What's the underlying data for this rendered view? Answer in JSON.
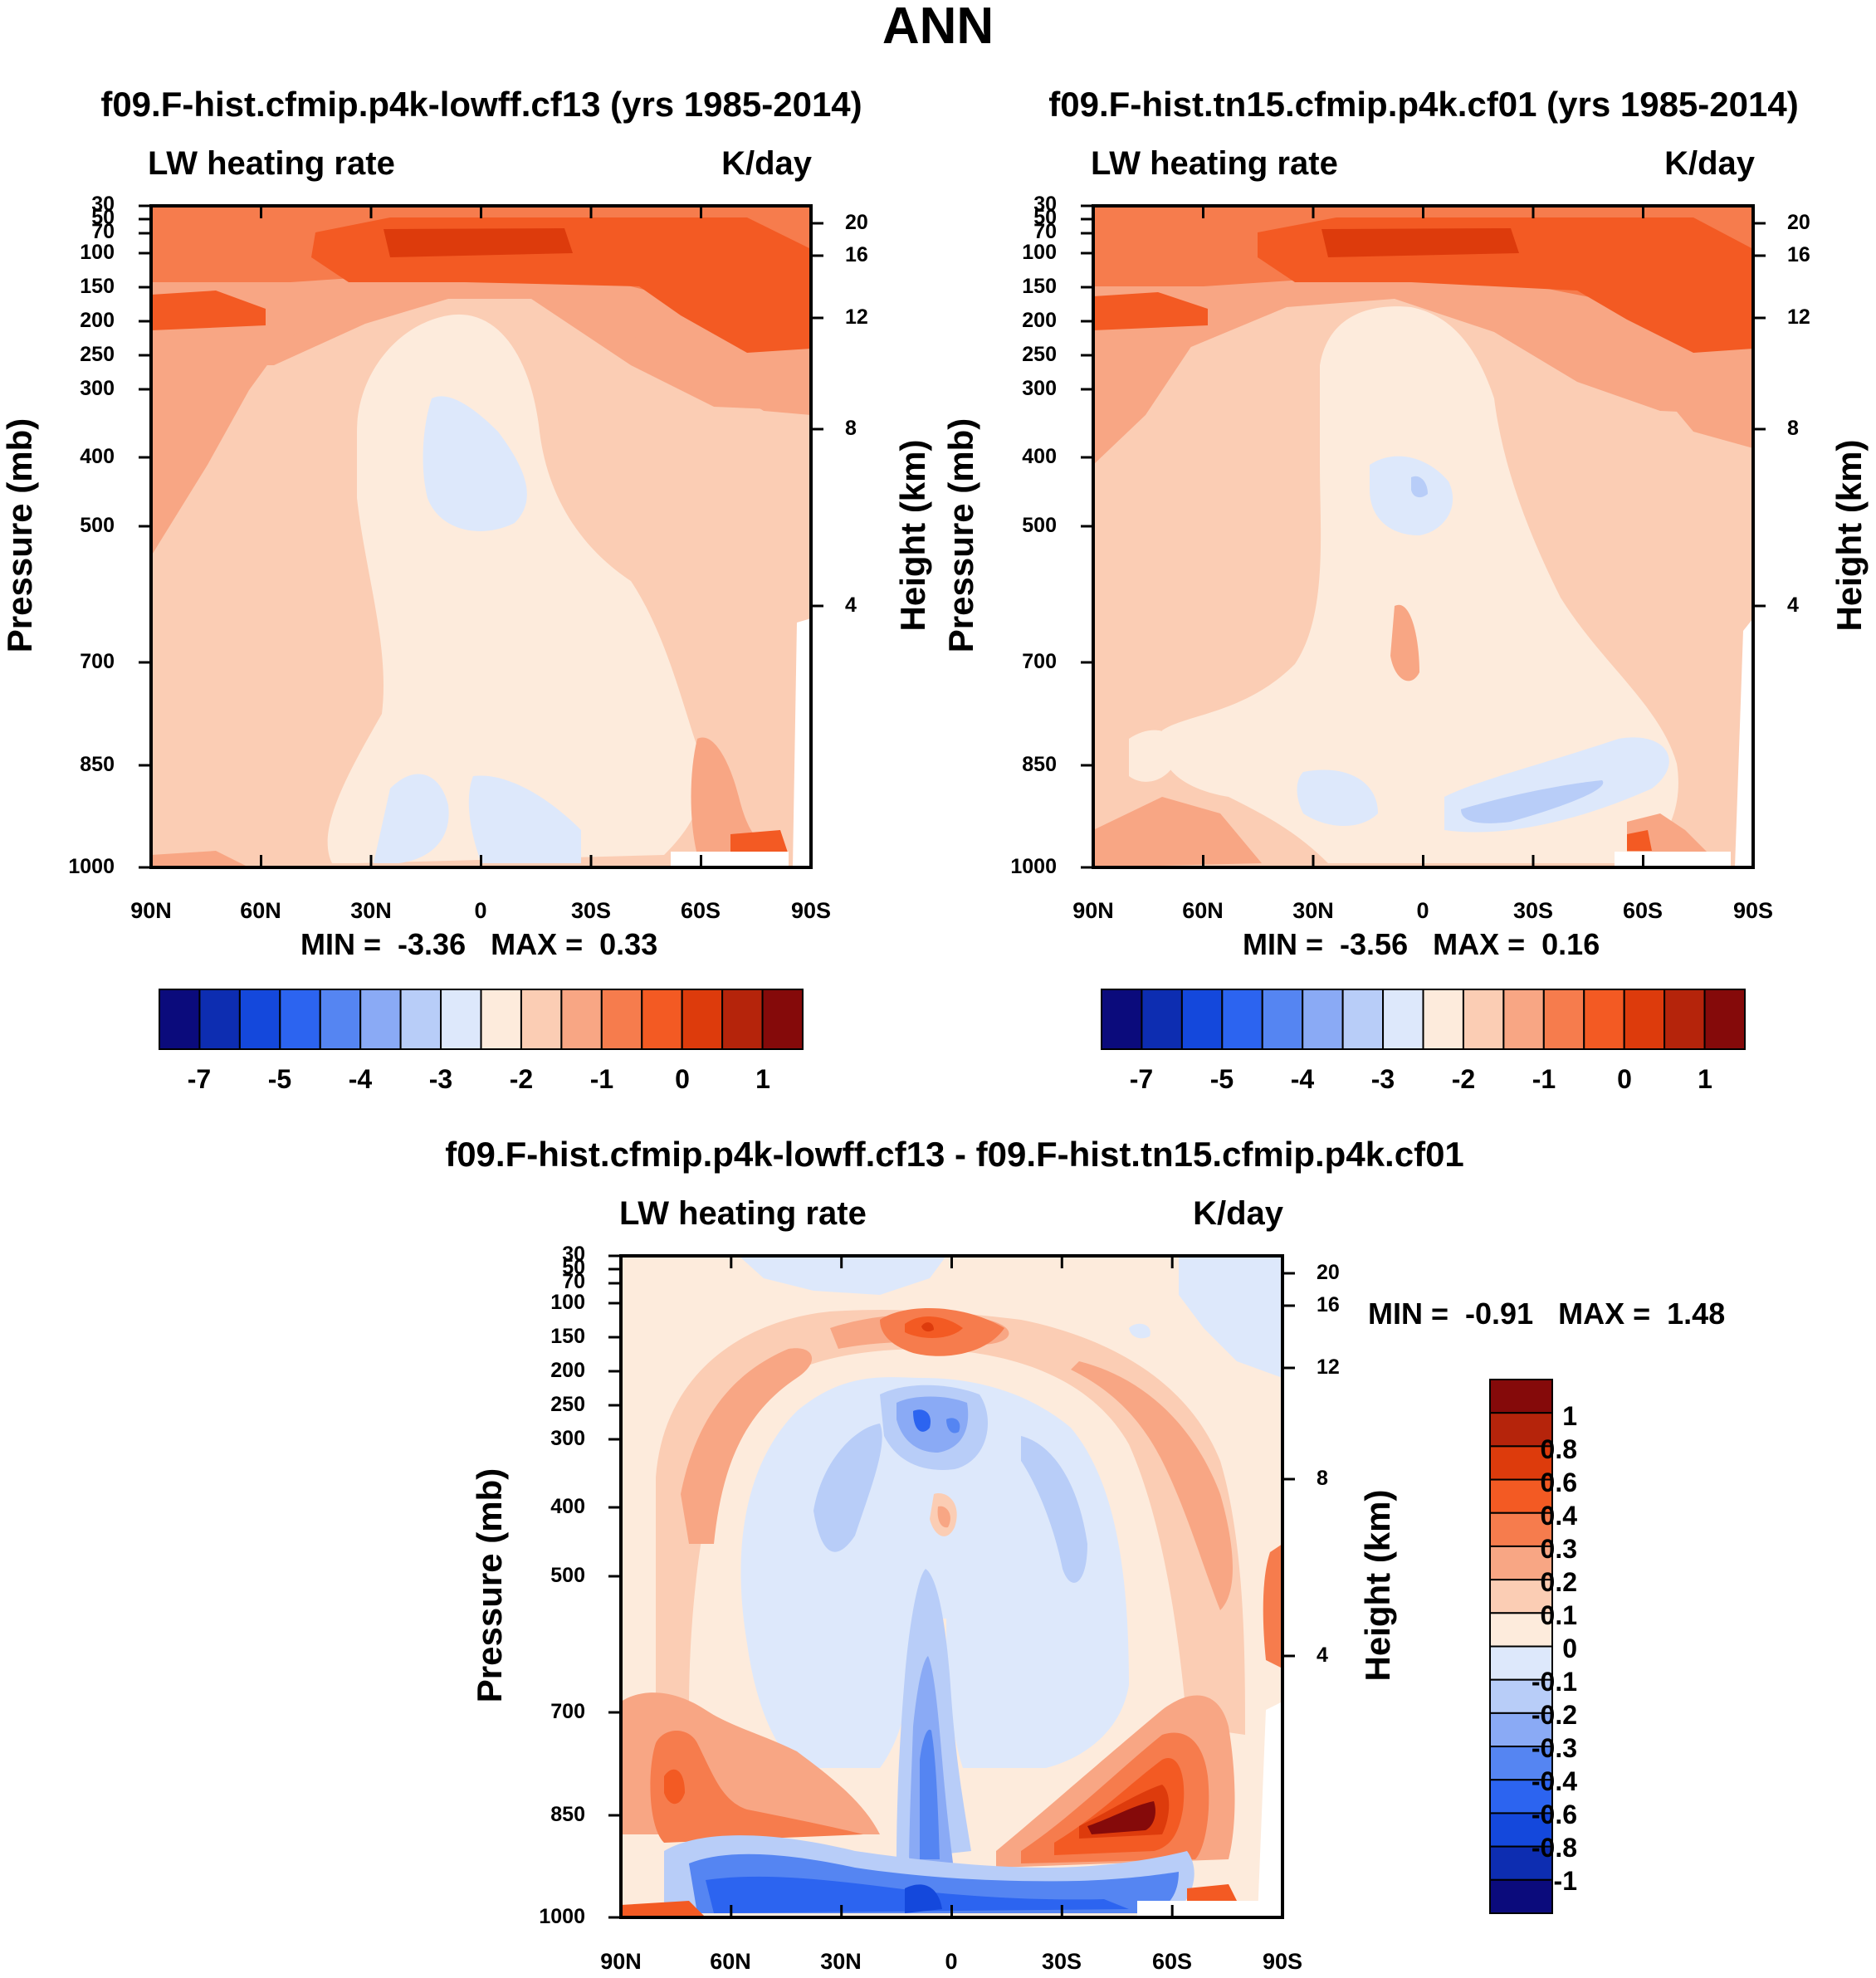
{
  "figure_title": "ANN",
  "chart_data": [
    {
      "type": "heatmap",
      "title": "f09.F-hist.cfmip.p4k-lowff.cf13 (yrs 1985-2014)",
      "variable": "LW heating rate",
      "units": "K/day",
      "xlabel": "",
      "ylabel": "Pressure (mb)",
      "y2label": "Height (km)",
      "x_ticks": [
        "90N",
        "60N",
        "30N",
        "0",
        "30S",
        "60S",
        "90S"
      ],
      "y_ticks": [
        "30",
        "50",
        "70",
        "100",
        "150",
        "200",
        "250",
        "300",
        "400",
        "500",
        "700",
        "850",
        "1000"
      ],
      "y2_ticks": [
        "20",
        "16",
        "12",
        "8",
        "4"
      ],
      "ylim": [
        1000,
        30
      ],
      "stats": {
        "min_label": "MIN =",
        "min": "-3.36",
        "max_label": "MAX =",
        "max": "0.33"
      },
      "colorbar_labels": [
        "-7",
        "-5",
        "-4",
        "-3",
        "-2",
        "-1",
        "0",
        "1"
      ]
    },
    {
      "type": "heatmap",
      "title": "f09.F-hist.tn15.cfmip.p4k.cf01 (yrs 1985-2014)",
      "variable": "LW heating rate",
      "units": "K/day",
      "xlabel": "",
      "ylabel": "Pressure (mb)",
      "y2label": "Height (km)",
      "x_ticks": [
        "90N",
        "60N",
        "30N",
        "0",
        "30S",
        "60S",
        "90S"
      ],
      "y_ticks": [
        "30",
        "50",
        "70",
        "100",
        "150",
        "200",
        "250",
        "300",
        "400",
        "500",
        "700",
        "850",
        "1000"
      ],
      "y2_ticks": [
        "20",
        "16",
        "12",
        "8",
        "4"
      ],
      "ylim": [
        1000,
        30
      ],
      "stats": {
        "min_label": "MIN =",
        "min": "-3.56",
        "max_label": "MAX =",
        "max": "0.16"
      },
      "colorbar_labels": [
        "-7",
        "-5",
        "-4",
        "-3",
        "-2",
        "-1",
        "0",
        "1"
      ]
    },
    {
      "type": "heatmap",
      "title": "f09.F-hist.cfmip.p4k-lowff.cf13 - f09.F-hist.tn15.cfmip.p4k.cf01",
      "variable": "LW heating rate",
      "units": "K/day",
      "xlabel": "",
      "ylabel": "Pressure (mb)",
      "y2label": "Height (km)",
      "x_ticks": [
        "90N",
        "60N",
        "30N",
        "0",
        "30S",
        "60S",
        "90S"
      ],
      "y_ticks": [
        "30",
        "50",
        "70",
        "100",
        "150",
        "200",
        "250",
        "300",
        "400",
        "500",
        "700",
        "850",
        "1000"
      ],
      "y2_ticks": [
        "20",
        "16",
        "12",
        "8",
        "4"
      ],
      "ylim": [
        1000,
        30
      ],
      "stats": {
        "min_label": "MIN =",
        "min": "-0.91",
        "max_label": "MAX =",
        "max": "1.48"
      },
      "colorbar_labels": [
        "1",
        "0.8",
        "0.6",
        "0.4",
        "0.3",
        "0.2",
        "0.1",
        "0",
        "-0.1",
        "-0.2",
        "-0.3",
        "-0.4",
        "-0.6",
        "-0.8",
        "-1"
      ]
    }
  ],
  "colors": {
    "palette": [
      "#0b0b7c",
      "#0d2db1",
      "#1448dc",
      "#2c64f0",
      "#5585f2",
      "#8aaaf5",
      "#b8cdf8",
      "#dde8fb",
      "#fdebdc",
      "#fbcdb4",
      "#f8a684",
      "#f67c4d",
      "#f35a23",
      "#dd3b0c",
      "#b5240b",
      "#850a0a"
    ]
  }
}
